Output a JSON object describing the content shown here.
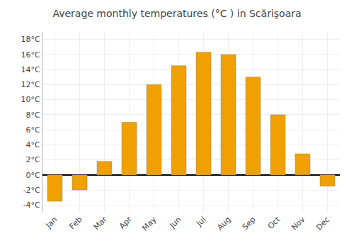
{
  "chart_data": {
    "type": "bar",
    "title": "Average monthly temperatures (°C ) in Scărişoara",
    "categories": [
      "Jan",
      "Feb",
      "Mar",
      "Apr",
      "May",
      "Jun",
      "Jul",
      "Aug",
      "Sep",
      "Oct",
      "Nov",
      "Dec"
    ],
    "values": [
      -3.5,
      -2.0,
      1.8,
      7.0,
      12.0,
      14.5,
      16.3,
      16.0,
      13.0,
      8.0,
      2.8,
      -1.5
    ],
    "color": "#F0A000",
    "ylim": [
      -5,
      19
    ],
    "yticks": [
      {
        "value": -4,
        "label": "-4°C"
      },
      {
        "value": -2,
        "label": "-2°C"
      },
      {
        "value": 0,
        "label": "0°C"
      },
      {
        "value": 2,
        "label": "2°C"
      },
      {
        "value": 4,
        "label": "4°C"
      },
      {
        "value": 6,
        "label": "6°C"
      },
      {
        "value": 8,
        "label": "8°C"
      },
      {
        "value": 10,
        "label": "10°C"
      },
      {
        "value": 12,
        "label": "12°C"
      },
      {
        "value": 14,
        "label": "14°C"
      },
      {
        "value": 16,
        "label": "16°C"
      },
      {
        "value": 18,
        "label": "18°C"
      }
    ],
    "grid": true
  }
}
